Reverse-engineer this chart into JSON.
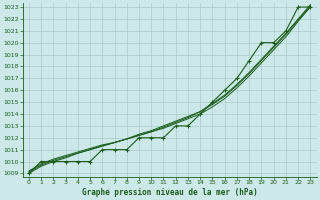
{
  "title": "Graphe pression niveau de la mer (hPa)",
  "bg_color": "#cce8e8",
  "grid_color": "#aacccc",
  "line_color": "#1a5c1a",
  "ylim": [
    1009,
    1023
  ],
  "xlim": [
    -0.5,
    23.5
  ],
  "ytick_labels": [
    "1009",
    "1010",
    "1011",
    "1012",
    "1013",
    "1014",
    "1015",
    "1016",
    "1017",
    "1018",
    "1019",
    "1020",
    "1021",
    "1022",
    "1023"
  ],
  "ytick_vals": [
    1009,
    1010,
    1011,
    1012,
    1013,
    1014,
    1015,
    1016,
    1017,
    1018,
    1019,
    1020,
    1021,
    1022,
    1023
  ],
  "xtick_vals": [
    0,
    1,
    2,
    3,
    4,
    5,
    6,
    7,
    8,
    9,
    10,
    11,
    12,
    13,
    14,
    15,
    16,
    17,
    18,
    19,
    20,
    21,
    22,
    23
  ],
  "main_series_x": [
    0,
    1,
    2,
    3,
    4,
    5,
    6,
    7,
    8,
    9,
    10,
    11,
    12,
    13,
    14,
    15,
    16,
    17,
    18,
    19,
    20,
    21,
    22,
    23
  ],
  "main_series_y": [
    1009.0,
    1010.0,
    1010.0,
    1010.0,
    1010.0,
    1010.0,
    1011.0,
    1011.0,
    1011.0,
    1012.0,
    1012.0,
    1012.0,
    1013.0,
    1013.0,
    1014.0,
    1015.0,
    1016.0,
    1017.0,
    1018.5,
    1020.0,
    1020.0,
    1021.0,
    1023.0,
    1023.0
  ],
  "smooth_line1_y": [
    1009.2,
    1009.8,
    1010.2,
    1010.5,
    1010.8,
    1011.1,
    1011.4,
    1011.6,
    1011.9,
    1012.2,
    1012.5,
    1012.8,
    1013.2,
    1013.6,
    1014.0,
    1014.6,
    1015.3,
    1016.2,
    1017.2,
    1018.3,
    1019.4,
    1020.5,
    1021.8,
    1023.0
  ],
  "smooth_line2_y": [
    1009.0,
    1009.6,
    1010.0,
    1010.3,
    1010.7,
    1011.0,
    1011.3,
    1011.6,
    1011.9,
    1012.2,
    1012.5,
    1012.9,
    1013.3,
    1013.7,
    1014.2,
    1014.8,
    1015.5,
    1016.4,
    1017.4,
    1018.5,
    1019.6,
    1020.7,
    1021.9,
    1023.1
  ],
  "smooth_line3_y": [
    1009.1,
    1009.7,
    1010.1,
    1010.4,
    1010.7,
    1011.0,
    1011.3,
    1011.6,
    1011.9,
    1012.3,
    1012.6,
    1013.0,
    1013.4,
    1013.8,
    1014.2,
    1014.9,
    1015.6,
    1016.5,
    1017.5,
    1018.6,
    1019.7,
    1020.8,
    1022.0,
    1023.2
  ]
}
